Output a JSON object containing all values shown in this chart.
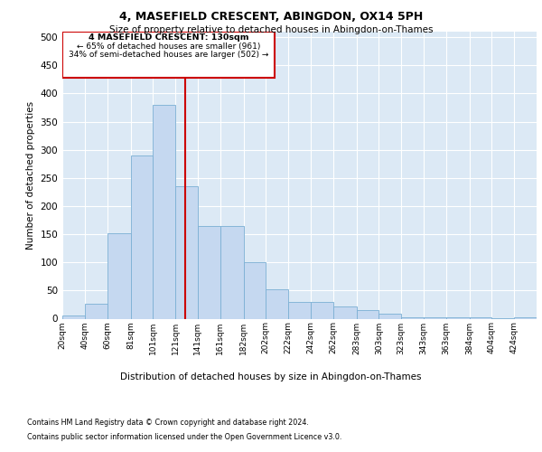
{
  "title": "4, MASEFIELD CRESCENT, ABINGDON, OX14 5PH",
  "subtitle": "Size of property relative to detached houses in Abingdon-on-Thames",
  "xlabel": "Distribution of detached houses by size in Abingdon-on-Thames",
  "ylabel": "Number of detached properties",
  "footnote1": "Contains HM Land Registry data © Crown copyright and database right 2024.",
  "footnote2": "Contains public sector information licensed under the Open Government Licence v3.0.",
  "property_label": "4 MASEFIELD CRESCENT: 130sqm",
  "annotation_line1": "← 65% of detached houses are smaller (961)",
  "annotation_line2": "34% of semi-detached houses are larger (502) →",
  "bin_labels": [
    "20sqm",
    "40sqm",
    "60sqm",
    "81sqm",
    "101sqm",
    "121sqm",
    "141sqm",
    "161sqm",
    "182sqm",
    "202sqm",
    "222sqm",
    "242sqm",
    "262sqm",
    "283sqm",
    "303sqm",
    "323sqm",
    "343sqm",
    "363sqm",
    "384sqm",
    "404sqm",
    "424sqm"
  ],
  "bin_edges": [
    20,
    40,
    60,
    81,
    101,
    121,
    141,
    161,
    182,
    202,
    222,
    242,
    262,
    283,
    303,
    323,
    343,
    363,
    384,
    404,
    424,
    444
  ],
  "bar_values": [
    5,
    26,
    152,
    290,
    380,
    235,
    165,
    165,
    100,
    52,
    29,
    29,
    21,
    15,
    9,
    3,
    2,
    2,
    2,
    1,
    2
  ],
  "bar_color": "#c5d8f0",
  "bar_edge_color": "#7bafd4",
  "vline_x": 130,
  "vline_color": "#cc0000",
  "box_color": "#cc0000",
  "background_color": "#dce9f5",
  "ylim": [
    0,
    510
  ],
  "yticks": [
    0,
    50,
    100,
    150,
    200,
    250,
    300,
    350,
    400,
    450,
    500
  ]
}
